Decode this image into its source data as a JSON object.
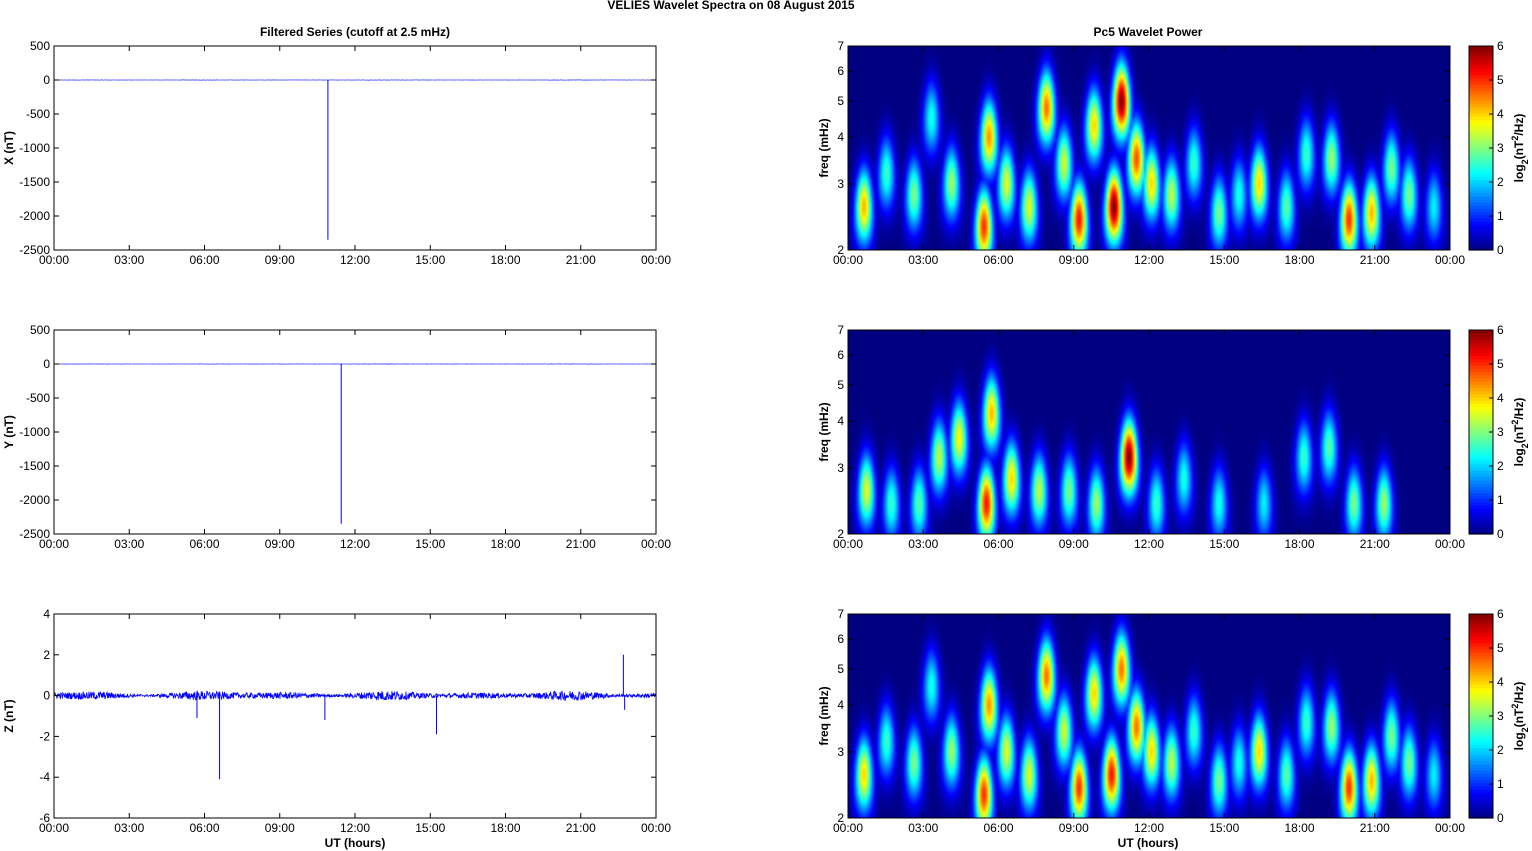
{
  "figure": {
    "title": "VELIES Wavelet Spectra on 08 August    2015",
    "left_title": "Filtered Series (cutoff at 2.5 mHz)",
    "right_title": "Pc5 Wavelet Power"
  },
  "time_ticks": [
    "00:00",
    "03:00",
    "06:00",
    "09:00",
    "12:00",
    "15:00",
    "18:00",
    "21:00",
    "00:00"
  ],
  "xlabel": "UT (hours)",
  "chart_data": [
    {
      "type": "line",
      "name": "x-series",
      "ylabel": "X (nT)",
      "xlim": [
        0,
        24
      ],
      "ylim": [
        -2500,
        500
      ],
      "yticks": [
        500,
        0,
        -500,
        -1000,
        -1500,
        -2000,
        -2500
      ],
      "color": "#0000ff",
      "baseline": 0,
      "spikes": [
        {
          "x": 10.92,
          "y": -2350
        }
      ],
      "noise_amplitude": 3
    },
    {
      "type": "line",
      "name": "y-series",
      "ylabel": "Y (nT)",
      "xlim": [
        0,
        24
      ],
      "ylim": [
        -2500,
        500
      ],
      "yticks": [
        500,
        0,
        -500,
        -1000,
        -1500,
        -2000,
        -2500
      ],
      "color": "#0000ff",
      "baseline": 0,
      "spikes": [
        {
          "x": 11.45,
          "y": -2350
        }
      ],
      "noise_amplitude": 3
    },
    {
      "type": "line",
      "name": "z-series",
      "ylabel": "Z (nT)",
      "xlim": [
        0,
        24
      ],
      "ylim": [
        -6,
        4
      ],
      "yticks": [
        4,
        2,
        0,
        -2,
        -4,
        -6
      ],
      "color": "#0000ff",
      "baseline": 0,
      "spikes": [
        {
          "x": 6.6,
          "y": -4.1
        },
        {
          "x": 15.25,
          "y": -1.9
        },
        {
          "x": 22.7,
          "y": 2.0
        },
        {
          "x": 22.75,
          "y": -0.7
        },
        {
          "x": 5.7,
          "y": -1.1
        },
        {
          "x": 10.8,
          "y": -1.2
        }
      ],
      "noise_amplitude": 0.25
    },
    {
      "type": "heatmap",
      "name": "x-wavelet",
      "ylabel": "freq (mHz)",
      "xlim": [
        0,
        24
      ],
      "ylim": [
        2,
        7
      ],
      "yscale": "log",
      "yticks": [
        2,
        3,
        4,
        5,
        6,
        7
      ],
      "colorbar": {
        "label": "log2(nT2/Hz)",
        "range": [
          0,
          6
        ],
        "ticks": [
          0,
          1,
          2,
          3,
          4,
          5,
          6
        ]
      },
      "events": [
        {
          "t": 0.6,
          "f": 2.6,
          "p": 4.2
        },
        {
          "t": 1.5,
          "f": 3.2,
          "p": 2.6
        },
        {
          "t": 2.6,
          "f": 2.8,
          "p": 3.0
        },
        {
          "t": 3.3,
          "f": 4.5,
          "p": 2.4
        },
        {
          "t": 4.1,
          "f": 3.0,
          "p": 3.2
        },
        {
          "t": 5.4,
          "f": 2.3,
          "p": 5.0
        },
        {
          "t": 5.6,
          "f": 4.0,
          "p": 4.4
        },
        {
          "t": 6.3,
          "f": 3.0,
          "p": 3.6
        },
        {
          "t": 7.2,
          "f": 2.6,
          "p": 3.6
        },
        {
          "t": 7.9,
          "f": 4.8,
          "p": 4.6
        },
        {
          "t": 8.6,
          "f": 3.4,
          "p": 3.5
        },
        {
          "t": 9.2,
          "f": 2.4,
          "p": 5.2
        },
        {
          "t": 9.8,
          "f": 4.3,
          "p": 4.0
        },
        {
          "t": 10.6,
          "f": 2.6,
          "p": 6.0
        },
        {
          "t": 10.9,
          "f": 5.0,
          "p": 6.0
        },
        {
          "t": 11.5,
          "f": 3.5,
          "p": 4.8
        },
        {
          "t": 12.1,
          "f": 3.0,
          "p": 4.0
        },
        {
          "t": 12.9,
          "f": 2.8,
          "p": 3.4
        },
        {
          "t": 13.8,
          "f": 3.4,
          "p": 2.6
        },
        {
          "t": 14.8,
          "f": 2.5,
          "p": 3.0
        },
        {
          "t": 15.6,
          "f": 2.8,
          "p": 2.4
        },
        {
          "t": 16.4,
          "f": 3.0,
          "p": 4.0
        },
        {
          "t": 17.5,
          "f": 2.6,
          "p": 2.8
        },
        {
          "t": 18.3,
          "f": 3.6,
          "p": 2.6
        },
        {
          "t": 19.3,
          "f": 3.5,
          "p": 3.2
        },
        {
          "t": 20.0,
          "f": 2.4,
          "p": 5.0
        },
        {
          "t": 20.9,
          "f": 2.5,
          "p": 4.2
        },
        {
          "t": 21.7,
          "f": 3.3,
          "p": 3.0
        },
        {
          "t": 22.4,
          "f": 2.8,
          "p": 3.0
        },
        {
          "t": 23.4,
          "f": 2.6,
          "p": 2.2
        }
      ]
    },
    {
      "type": "heatmap",
      "name": "y-wavelet",
      "ylabel": "freq (mHz)",
      "xlim": [
        0,
        24
      ],
      "ylim": [
        2,
        7
      ],
      "yscale": "log",
      "yticks": [
        2,
        3,
        4,
        5,
        6,
        7
      ],
      "colorbar": {
        "label": "log2(nT2/Hz)",
        "range": [
          0,
          6
        ],
        "ticks": [
          0,
          1,
          2,
          3,
          4,
          5,
          6
        ]
      },
      "events": [
        {
          "t": 0.7,
          "f": 2.6,
          "p": 3.6
        },
        {
          "t": 1.7,
          "f": 2.4,
          "p": 2.6
        },
        {
          "t": 2.8,
          "f": 2.4,
          "p": 2.8
        },
        {
          "t": 3.6,
          "f": 3.2,
          "p": 3.4
        },
        {
          "t": 4.4,
          "f": 3.6,
          "p": 3.8
        },
        {
          "t": 5.5,
          "f": 2.4,
          "p": 5.2
        },
        {
          "t": 5.7,
          "f": 4.2,
          "p": 4.2
        },
        {
          "t": 6.5,
          "f": 2.8,
          "p": 4.0
        },
        {
          "t": 7.6,
          "f": 2.6,
          "p": 3.4
        },
        {
          "t": 8.8,
          "f": 2.6,
          "p": 3.0
        },
        {
          "t": 9.9,
          "f": 2.4,
          "p": 3.2
        },
        {
          "t": 11.2,
          "f": 3.2,
          "p": 6.0
        },
        {
          "t": 12.3,
          "f": 2.4,
          "p": 2.6
        },
        {
          "t": 13.4,
          "f": 2.8,
          "p": 2.4
        },
        {
          "t": 14.8,
          "f": 2.4,
          "p": 2.4
        },
        {
          "t": 16.6,
          "f": 2.4,
          "p": 2.2
        },
        {
          "t": 18.2,
          "f": 3.2,
          "p": 2.6
        },
        {
          "t": 19.2,
          "f": 3.4,
          "p": 2.8
        },
        {
          "t": 20.2,
          "f": 2.4,
          "p": 3.0
        },
        {
          "t": 21.4,
          "f": 2.4,
          "p": 3.2
        }
      ]
    },
    {
      "type": "heatmap",
      "name": "z-wavelet",
      "ylabel": "freq (mHz)",
      "xlim": [
        0,
        24
      ],
      "ylim": [
        2,
        7
      ],
      "yscale": "log",
      "yticks": [
        2,
        3,
        4,
        5,
        6,
        7
      ],
      "colorbar": {
        "label": "log2(nT2/Hz)",
        "range": [
          0,
          6
        ],
        "ticks": [
          0,
          1,
          2,
          3,
          4,
          5,
          6
        ]
      },
      "events": [
        {
          "t": 0.6,
          "f": 2.6,
          "p": 4.0
        },
        {
          "t": 1.5,
          "f": 3.2,
          "p": 2.6
        },
        {
          "t": 2.6,
          "f": 2.8,
          "p": 3.0
        },
        {
          "t": 3.3,
          "f": 4.5,
          "p": 2.4
        },
        {
          "t": 4.1,
          "f": 3.0,
          "p": 3.2
        },
        {
          "t": 5.4,
          "f": 2.3,
          "p": 5.0
        },
        {
          "t": 5.6,
          "f": 4.0,
          "p": 4.4
        },
        {
          "t": 6.3,
          "f": 3.0,
          "p": 3.6
        },
        {
          "t": 7.2,
          "f": 2.6,
          "p": 3.6
        },
        {
          "t": 7.9,
          "f": 4.8,
          "p": 4.6
        },
        {
          "t": 8.6,
          "f": 3.4,
          "p": 3.5
        },
        {
          "t": 9.2,
          "f": 2.4,
          "p": 5.0
        },
        {
          "t": 9.8,
          "f": 4.3,
          "p": 4.0
        },
        {
          "t": 10.5,
          "f": 2.6,
          "p": 5.2
        },
        {
          "t": 10.9,
          "f": 5.0,
          "p": 4.6
        },
        {
          "t": 11.5,
          "f": 3.5,
          "p": 4.6
        },
        {
          "t": 12.1,
          "f": 3.0,
          "p": 4.0
        },
        {
          "t": 12.9,
          "f": 2.8,
          "p": 3.4
        },
        {
          "t": 13.8,
          "f": 3.4,
          "p": 2.6
        },
        {
          "t": 14.8,
          "f": 2.5,
          "p": 3.0
        },
        {
          "t": 15.6,
          "f": 2.8,
          "p": 2.4
        },
        {
          "t": 16.4,
          "f": 3.0,
          "p": 4.0
        },
        {
          "t": 17.5,
          "f": 2.6,
          "p": 2.8
        },
        {
          "t": 18.3,
          "f": 3.6,
          "p": 2.6
        },
        {
          "t": 19.3,
          "f": 3.5,
          "p": 3.2
        },
        {
          "t": 20.0,
          "f": 2.4,
          "p": 5.0
        },
        {
          "t": 20.9,
          "f": 2.5,
          "p": 4.2
        },
        {
          "t": 21.7,
          "f": 3.3,
          "p": 3.0
        },
        {
          "t": 22.4,
          "f": 2.8,
          "p": 3.0
        },
        {
          "t": 23.4,
          "f": 2.6,
          "p": 2.2
        }
      ]
    }
  ]
}
